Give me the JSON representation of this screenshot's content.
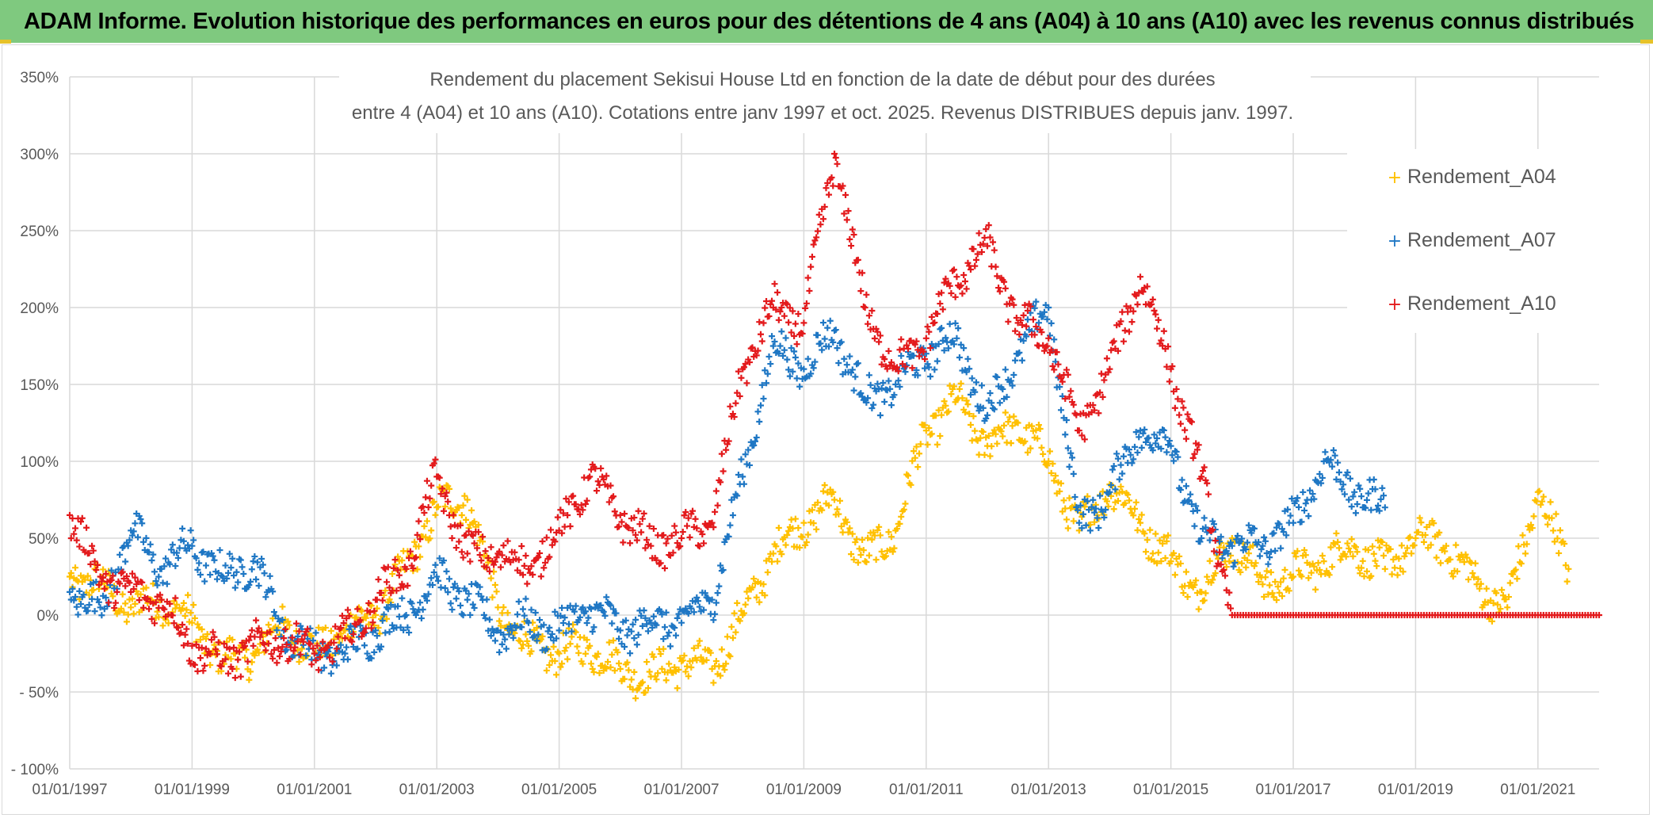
{
  "header": {
    "banner": "ADAM Informe. Evolution historique des performances en euros pour des détentions de 4 ans (A04) à 10 ans (A10) avec les revenus connus distribués"
  },
  "colors": {
    "banner_bg": "#7fc97f",
    "A04": "#ffc000",
    "A07": "#1f77c4",
    "A10": "#e31a1c",
    "grid": "#d9d9d9",
    "text": "#595959"
  },
  "chart_data": {
    "type": "scatter",
    "marker": "+",
    "title_line1": "Rendement du placement Sekisui House Ltd en fonction de la date de début pour des durées",
    "title_line2": "entre 4 (A04) et 10 ans (A10). Cotations entre janv 1997 et oct. 2025. Revenus DISTRIBUES depuis janv. 1997.",
    "xlabel": "",
    "ylabel": "",
    "x_range": [
      1997.0,
      2022.0
    ],
    "ylim": [
      -100,
      350
    ],
    "grid": true,
    "legend_position": "top-right",
    "y_ticks": [
      -100,
      -50,
      0,
      50,
      100,
      150,
      200,
      250,
      300,
      350
    ],
    "y_tick_labels": [
      "- 100%",
      "- 50%",
      "0%",
      "50%",
      "100%",
      "150%",
      "200%",
      "250%",
      "300%",
      "350%"
    ],
    "x_ticks": [
      1997,
      1999,
      2001,
      2003,
      2005,
      2007,
      2009,
      2011,
      2013,
      2015,
      2017,
      2019,
      2021
    ],
    "x_tick_labels": [
      "01/01/1997",
      "01/01/1999",
      "01/01/2001",
      "01/01/2003",
      "01/01/2005",
      "01/01/2007",
      "01/01/2009",
      "01/01/2011",
      "01/01/2013",
      "01/01/2015",
      "01/01/2017",
      "01/01/2019",
      "01/01/2021"
    ],
    "series": [
      {
        "name": "Rendement_A04",
        "color": "#ffc000",
        "x": [
          1997.0,
          1997.5,
          1998.0,
          1998.5,
          1999.0,
          1999.5,
          2000.0,
          2000.5,
          2001.0,
          2001.5,
          2002.0,
          2002.5,
          2003.0,
          2003.5,
          2004.0,
          2004.5,
          2005.0,
          2005.5,
          2006.0,
          2006.5,
          2007.0,
          2007.5,
          2008.0,
          2008.5,
          2009.0,
          2009.5,
          2010.0,
          2010.5,
          2011.0,
          2011.5,
          2012.0,
          2012.5,
          2013.0,
          2013.5,
          2014.0,
          2014.5,
          2015.0,
          2015.5,
          2016.0,
          2016.5,
          2017.0,
          2017.5,
          2018.0,
          2018.5,
          2019.0,
          2019.5,
          2020.0,
          2020.5,
          2021.0,
          2021.5
        ],
        "y": [
          25,
          20,
          5,
          10,
          -5,
          -30,
          -25,
          -5,
          -25,
          -10,
          0,
          30,
          70,
          75,
          5,
          -20,
          -25,
          -20,
          -35,
          -40,
          -30,
          -35,
          0,
          40,
          60,
          75,
          35,
          55,
          120,
          140,
          110,
          125,
          100,
          55,
          85,
          60,
          35,
          15,
          50,
          20,
          25,
          35,
          45,
          30,
          50,
          45,
          20,
          5,
          80,
          30
        ]
      },
      {
        "name": "Rendement_A07",
        "color": "#1f77c4",
        "x": [
          1997.0,
          1997.5,
          1998.0,
          1998.5,
          1999.0,
          1999.5,
          2000.0,
          2000.5,
          2001.0,
          2001.5,
          2002.0,
          2002.5,
          2003.0,
          2003.5,
          2004.0,
          2004.5,
          2005.0,
          2005.5,
          2006.0,
          2006.5,
          2007.0,
          2007.5,
          2008.0,
          2008.5,
          2009.0,
          2009.5,
          2010.0,
          2010.5,
          2011.0,
          2011.5,
          2012.0,
          2012.5,
          2013.0,
          2013.5,
          2014.0,
          2014.5,
          2015.0,
          2015.5,
          2016.0,
          2016.5,
          2017.0,
          2017.5,
          2018.0,
          2018.5
        ],
        "y": [
          15,
          5,
          55,
          30,
          45,
          25,
          35,
          -10,
          -25,
          -25,
          -10,
          0,
          25,
          10,
          -10,
          -5,
          -10,
          5,
          -10,
          -5,
          -5,
          10,
          90,
          175,
          160,
          185,
          140,
          150,
          170,
          180,
          130,
          170,
          200,
          60,
          80,
          120,
          110,
          50,
          45,
          45,
          60,
          100,
          80,
          70
        ]
      },
      {
        "name": "Rendement_A10",
        "color": "#e31a1c",
        "x": [
          1997.0,
          1997.5,
          1998.0,
          1998.5,
          1999.0,
          1999.5,
          2000.0,
          2000.5,
          2001.0,
          2001.5,
          2002.0,
          2002.5,
          2003.0,
          2003.5,
          2004.0,
          2004.5,
          2005.0,
          2005.5,
          2006.0,
          2006.5,
          2007.0,
          2007.5,
          2008.0,
          2008.5,
          2009.0,
          2009.5,
          2010.0,
          2010.5,
          2011.0,
          2011.5,
          2012.0,
          2012.5,
          2013.0,
          2013.5,
          2014.0,
          2014.5,
          2015.0,
          2015.5,
          2016.0,
          2017.0,
          2018.0,
          2019.0,
          2020.0,
          2021.0,
          2022.0
        ],
        "y": [
          65,
          25,
          15,
          10,
          -20,
          -30,
          -20,
          -15,
          -25,
          -15,
          10,
          30,
          90,
          40,
          40,
          30,
          55,
          90,
          65,
          45,
          50,
          60,
          160,
          200,
          190,
          300,
          200,
          160,
          180,
          220,
          240,
          190,
          180,
          120,
          160,
          220,
          160,
          90,
          0,
          0,
          0,
          0,
          0,
          0,
          0
        ]
      }
    ]
  }
}
